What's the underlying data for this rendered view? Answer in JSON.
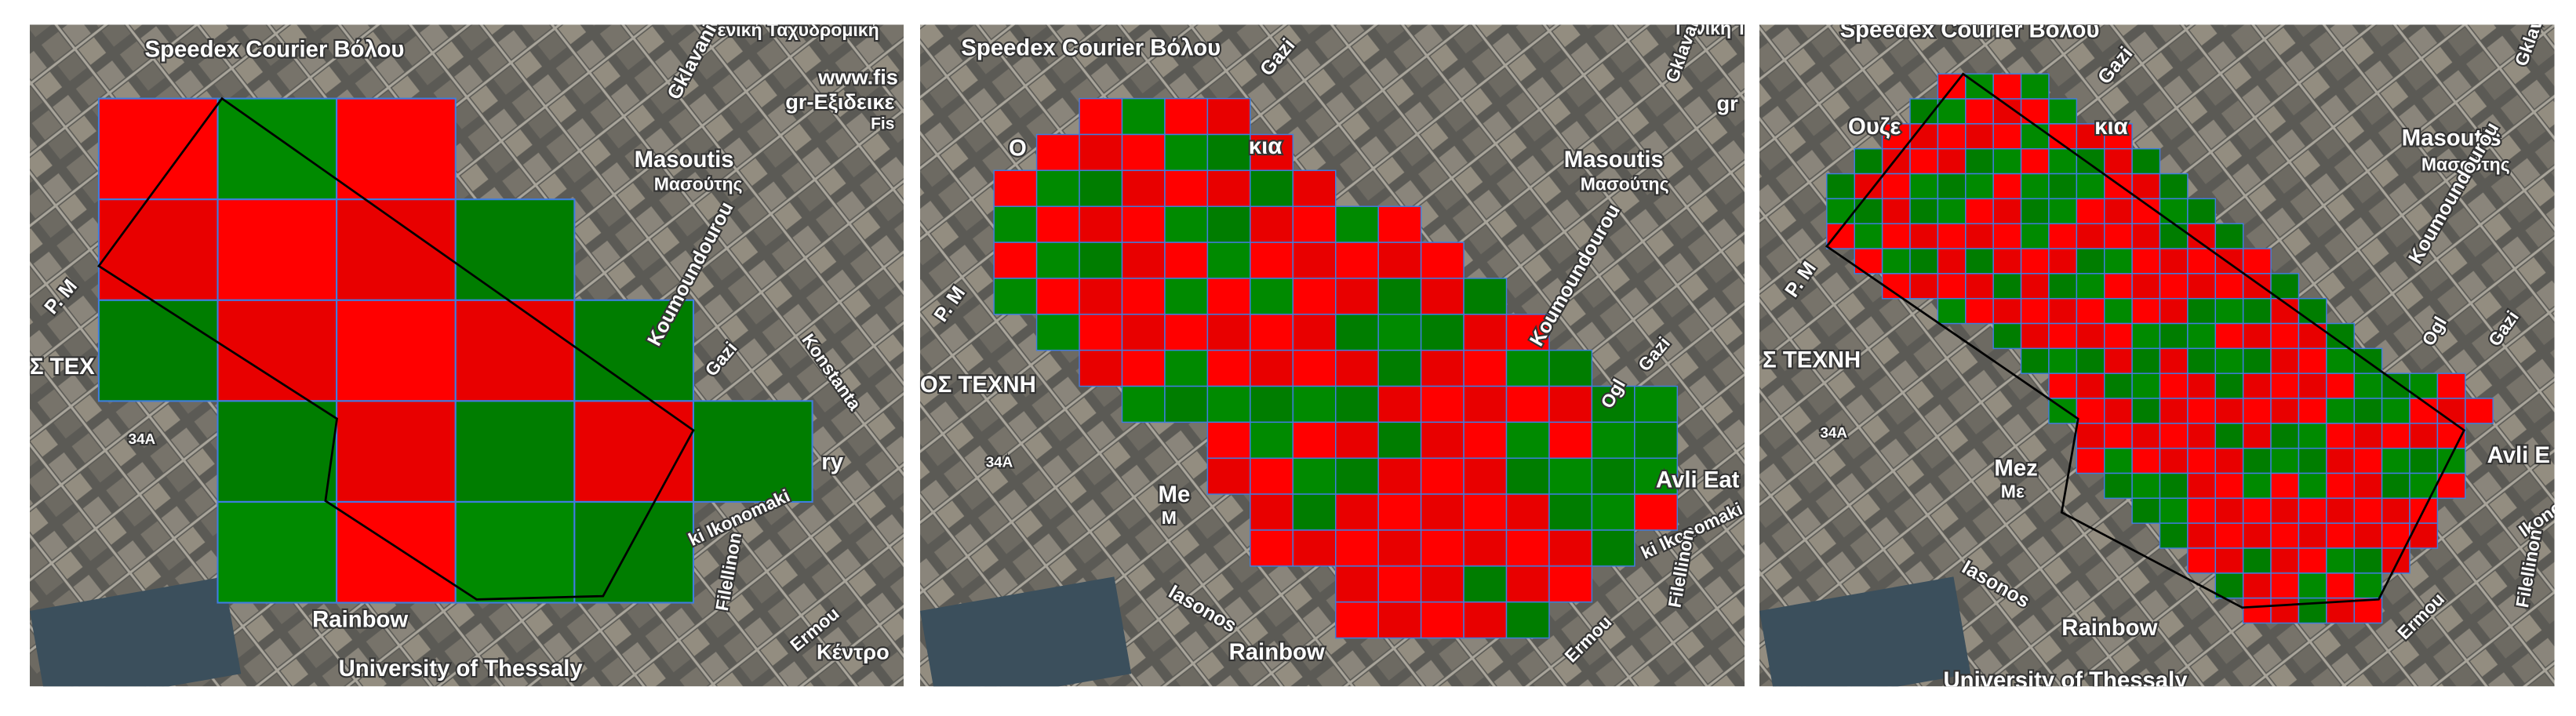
{
  "panels": [
    {
      "labels": [
        "Speedex Courier Βόλου",
        "Γενική Ταχυδρομική",
        "www.fis",
        "gr-Εξιδεικε",
        "Fis",
        "Masoutis",
        "Μασούτης",
        "Gklavani",
        "Koumoundourou",
        "Konstanta",
        "Gazi",
        "P. M",
        "Σ ΤΕΧ",
        "34A",
        "ry",
        "ki Ikonomaki",
        "Filellinon",
        "Ermou",
        "Rainbow",
        "University of Thessaly",
        "Κέντρο"
      ]
    },
    {
      "labels": [
        "Speedex Courier Βόλου",
        "Γενική Ταχ",
        "Gazi",
        "Gklavani",
        "gr",
        "Masoutis",
        "Μασούτης",
        "O",
        "κια",
        "Koumoundourou",
        "Ogl",
        "Gazi",
        "P. M",
        "ΟΣ ΤΕΧΝΗ",
        "34A",
        "Avli Eat",
        "Me",
        "Μ",
        "Iasonos",
        "ki Ikonomaki",
        "Filellinon",
        "Ermou",
        "Rainbow"
      ]
    },
    {
      "labels": [
        "Speedex Courier Βόλου",
        "Gazi",
        "Gklavani",
        "Ουζε",
        "κια",
        "Masoutis",
        "Μασούτης",
        "Koumoundourou",
        "Ogl",
        "Gazi",
        "P. M",
        "Σ ΤΕΧΝΗ",
        "34A",
        "Avli E",
        "Mez",
        "Με",
        "Iasonos",
        "Ikonoma",
        "Filellinon",
        "Ermou",
        "Rainbow",
        "University of Thessaly"
      ]
    }
  ]
}
